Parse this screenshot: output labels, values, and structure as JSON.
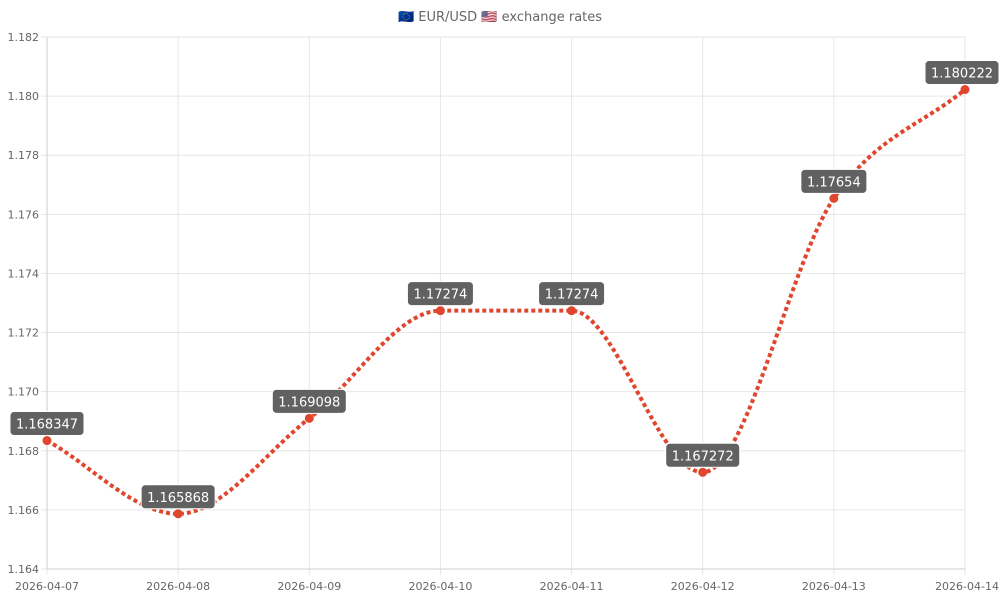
{
  "chart_data": {
    "type": "line",
    "title": "🇪🇺 EUR/USD 🇺🇸 exchange rates",
    "x": [
      "2026-04-07",
      "2026-04-08",
      "2026-04-09",
      "2026-04-10",
      "2026-04-11",
      "2026-04-12",
      "2026-04-13",
      "2026-04-14"
    ],
    "series": [
      {
        "values": [
          1.168347,
          1.165868,
          1.169098,
          1.17274,
          1.17274,
          1.167272,
          1.17654,
          1.180222
        ],
        "labels": [
          "1.168347",
          "1.165868",
          "1.169098",
          "1.17274",
          "1.17274",
          "1.167272",
          "1.17654",
          "1.180222"
        ],
        "color": "#e0452e"
      }
    ],
    "y_ticks": [
      "1.164",
      "1.166",
      "1.168",
      "1.170",
      "1.172",
      "1.174",
      "1.176",
      "1.178",
      "1.180",
      "1.182"
    ],
    "ylim": [
      1.164,
      1.182
    ],
    "grid": true,
    "line_style": "dotted",
    "label_background": "#616161",
    "grid_color": "#e6e6e6",
    "axis_color": "#cfcfcf"
  }
}
